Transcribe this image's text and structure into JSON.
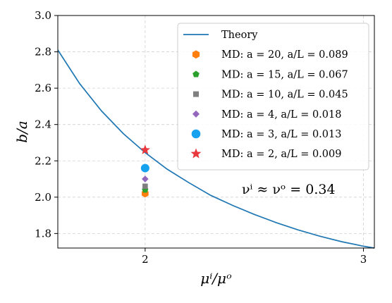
{
  "chart_data": {
    "type": "scatter",
    "xlabel": "μⁱ/μᵒ",
    "ylabel": "b/a",
    "xlim": [
      1.6,
      3.05
    ],
    "ylim": [
      1.72,
      3.0
    ],
    "xticks": [
      2,
      3
    ],
    "yticks": [
      1.8,
      2.0,
      2.2,
      2.4,
      2.6,
      2.8,
      3.0
    ],
    "xtick_labels": [
      "2",
      "3"
    ],
    "ytick_labels": [
      "1.8",
      "2.0",
      "2.2",
      "2.4",
      "2.6",
      "2.8",
      "3.0"
    ],
    "grid": true,
    "legend_position": "upper right",
    "annotation": "νⁱ ≈ νᵒ =  0.34",
    "theory": {
      "name": "Theory",
      "color": "#1f77b4",
      "x": [
        1.6,
        1.7,
        1.8,
        1.9,
        2.0,
        2.1,
        2.2,
        2.3,
        2.4,
        2.5,
        2.6,
        2.7,
        2.8,
        2.9,
        3.0,
        3.05
      ],
      "y": [
        2.81,
        2.625,
        2.475,
        2.35,
        2.245,
        2.155,
        2.08,
        2.01,
        1.955,
        1.905,
        1.86,
        1.82,
        1.785,
        1.755,
        1.73,
        1.72
      ]
    },
    "series": [
      {
        "name": "MD: a = 20, a/L = 0.089",
        "x": 2.0,
        "y": 2.02,
        "color": "#ff7f0e",
        "marker": "hexagon"
      },
      {
        "name": "MD: a = 15, a/L = 0.067",
        "x": 2.0,
        "y": 2.04,
        "color": "#2ca02c",
        "marker": "pentagon"
      },
      {
        "name": "MD: a = 10, a/L = 0.045",
        "x": 2.0,
        "y": 2.06,
        "color": "#7f7f7f",
        "marker": "square"
      },
      {
        "name": "MD: a = 4, a/L = 0.018",
        "x": 2.0,
        "y": 2.1,
        "color": "#9467bd",
        "marker": "diamond"
      },
      {
        "name": "MD: a = 3, a/L = 0.013",
        "x": 2.0,
        "y": 2.16,
        "color": "#17a2f0",
        "marker": "circle"
      },
      {
        "name": "MD: a = 2, a/L = 0.009",
        "x": 2.0,
        "y": 2.26,
        "color": "#e8383d",
        "marker": "star"
      }
    ]
  }
}
